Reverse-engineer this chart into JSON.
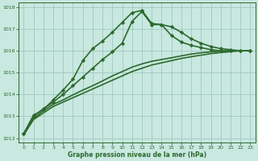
{
  "title": "Graphe pression niveau de la mer (hPa)",
  "background_color": "#c8e8e0",
  "grid_color": "#a0c8c0",
  "line_color_main": "#2d6a2d",
  "xlim": [
    -0.5,
    23.5
  ],
  "ylim": [
    1011.8,
    1018.2
  ],
  "xtick_labels": [
    "0",
    "1",
    "2",
    "3",
    "4",
    "5",
    "6",
    "7",
    "8",
    "9",
    "10",
    "11",
    "12",
    "13",
    "14",
    "15",
    "16",
    "17",
    "18",
    "19",
    "20",
    "21",
    "22",
    "23"
  ],
  "yticks": [
    1012,
    1013,
    1014,
    1015,
    1016,
    1017,
    1018
  ],
  "series": [
    {
      "x": [
        0,
        1,
        2,
        3,
        4,
        5,
        6,
        7,
        8,
        9,
        10,
        11,
        12,
        13,
        14,
        15,
        16,
        17,
        18,
        19,
        20,
        21,
        22,
        23
      ],
      "y": [
        1012.15,
        1012.85,
        1013.15,
        1013.45,
        1013.65,
        1013.85,
        1014.05,
        1014.25,
        1014.45,
        1014.65,
        1014.85,
        1015.05,
        1015.2,
        1015.35,
        1015.45,
        1015.55,
        1015.65,
        1015.73,
        1015.8,
        1015.87,
        1015.92,
        1015.96,
        1016.0,
        1016.0
      ],
      "marker": "None",
      "linewidth": 1.2,
      "linestyle": "-"
    },
    {
      "x": [
        0,
        1,
        2,
        3,
        4,
        5,
        6,
        7,
        8,
        9,
        10,
        11,
        12,
        13,
        14,
        15,
        16,
        17,
        18,
        19,
        20,
        21,
        22,
        23
      ],
      "y": [
        1012.15,
        1012.9,
        1013.25,
        1013.55,
        1013.75,
        1013.98,
        1014.2,
        1014.4,
        1014.62,
        1014.85,
        1015.05,
        1015.25,
        1015.4,
        1015.52,
        1015.6,
        1015.68,
        1015.77,
        1015.85,
        1015.91,
        1015.95,
        1015.98,
        1016.0,
        1016.0,
        1016.0
      ],
      "marker": "None",
      "linewidth": 1.2,
      "linestyle": "-"
    },
    {
      "x": [
        0,
        1,
        2,
        3,
        4,
        5,
        6,
        7,
        8,
        9,
        10,
        11,
        12,
        13,
        14,
        15,
        16,
        17,
        18,
        19,
        20,
        21,
        22,
        23
      ],
      "y": [
        1012.2,
        1013.0,
        1013.35,
        1013.65,
        1014.0,
        1014.4,
        1014.8,
        1015.2,
        1015.6,
        1015.95,
        1016.35,
        1017.35,
        1017.8,
        1017.2,
        1017.2,
        1017.1,
        1016.85,
        1016.55,
        1016.35,
        1016.2,
        1016.1,
        1016.05,
        1016.0,
        1016.0
      ],
      "marker": "D",
      "linewidth": 1.2,
      "linestyle": "-"
    },
    {
      "x": [
        0,
        1,
        2,
        3,
        4,
        5,
        6,
        7,
        8,
        9,
        10,
        11,
        12,
        13,
        14,
        15,
        16,
        17,
        18,
        19,
        20,
        21,
        22,
        23
      ],
      "y": [
        1012.2,
        1013.05,
        1013.3,
        1013.75,
        1014.2,
        1014.7,
        1015.55,
        1016.1,
        1016.45,
        1016.85,
        1017.3,
        1017.75,
        1017.85,
        1017.25,
        1017.2,
        1016.7,
        1016.4,
        1016.25,
        1016.15,
        1016.05,
        1016.0,
        1016.0,
        1016.0,
        1016.0
      ],
      "marker": "D",
      "linewidth": 1.2,
      "linestyle": "-"
    }
  ],
  "figsize": [
    3.2,
    2.0
  ],
  "dpi": 100
}
